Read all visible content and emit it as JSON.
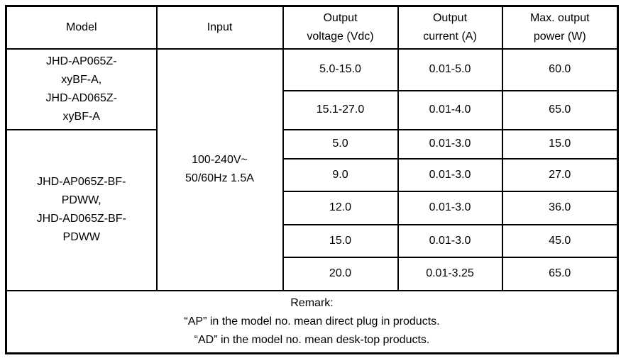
{
  "table": {
    "headers": {
      "model": "Model",
      "input": "Input",
      "output_voltage": "Output\nvoltage (Vdc)",
      "output_current": "Output\ncurrent (A)",
      "max_output_power": "Max. output\npower (W)"
    },
    "model_group_1": "JHD-AP065Z-\nxyBF-A,\nJHD-AD065Z-\nxyBF-A",
    "model_group_2": "JHD-AP065Z-BF-\nPDWW,\nJHD-AD065Z-BF-\nPDWW",
    "input_value": "100-240V~\n50/60Hz 1.5A",
    "rows": [
      {
        "voltage": "5.0-15.0",
        "current": "0.01-5.0",
        "power": "60.0"
      },
      {
        "voltage": "15.1-27.0",
        "current": "0.01-4.0",
        "power": "65.0"
      },
      {
        "voltage": "5.0",
        "current": "0.01-3.0",
        "power": "15.0"
      },
      {
        "voltage": "9.0",
        "current": "0.01-3.0",
        "power": "27.0"
      },
      {
        "voltage": "12.0",
        "current": "0.01-3.0",
        "power": "36.0"
      },
      {
        "voltage": "15.0",
        "current": "0.01-3.0",
        "power": "45.0"
      },
      {
        "voltage": "20.0",
        "current": "0.01-3.25",
        "power": "65.0"
      }
    ],
    "remark": "Remark:\n“AP” in the model no. mean direct plug in products.\n“AD” in the model no. mean desk-top products.",
    "colors": {
      "border": "#000000",
      "text": "#000000",
      "background": "#ffffff"
    }
  }
}
